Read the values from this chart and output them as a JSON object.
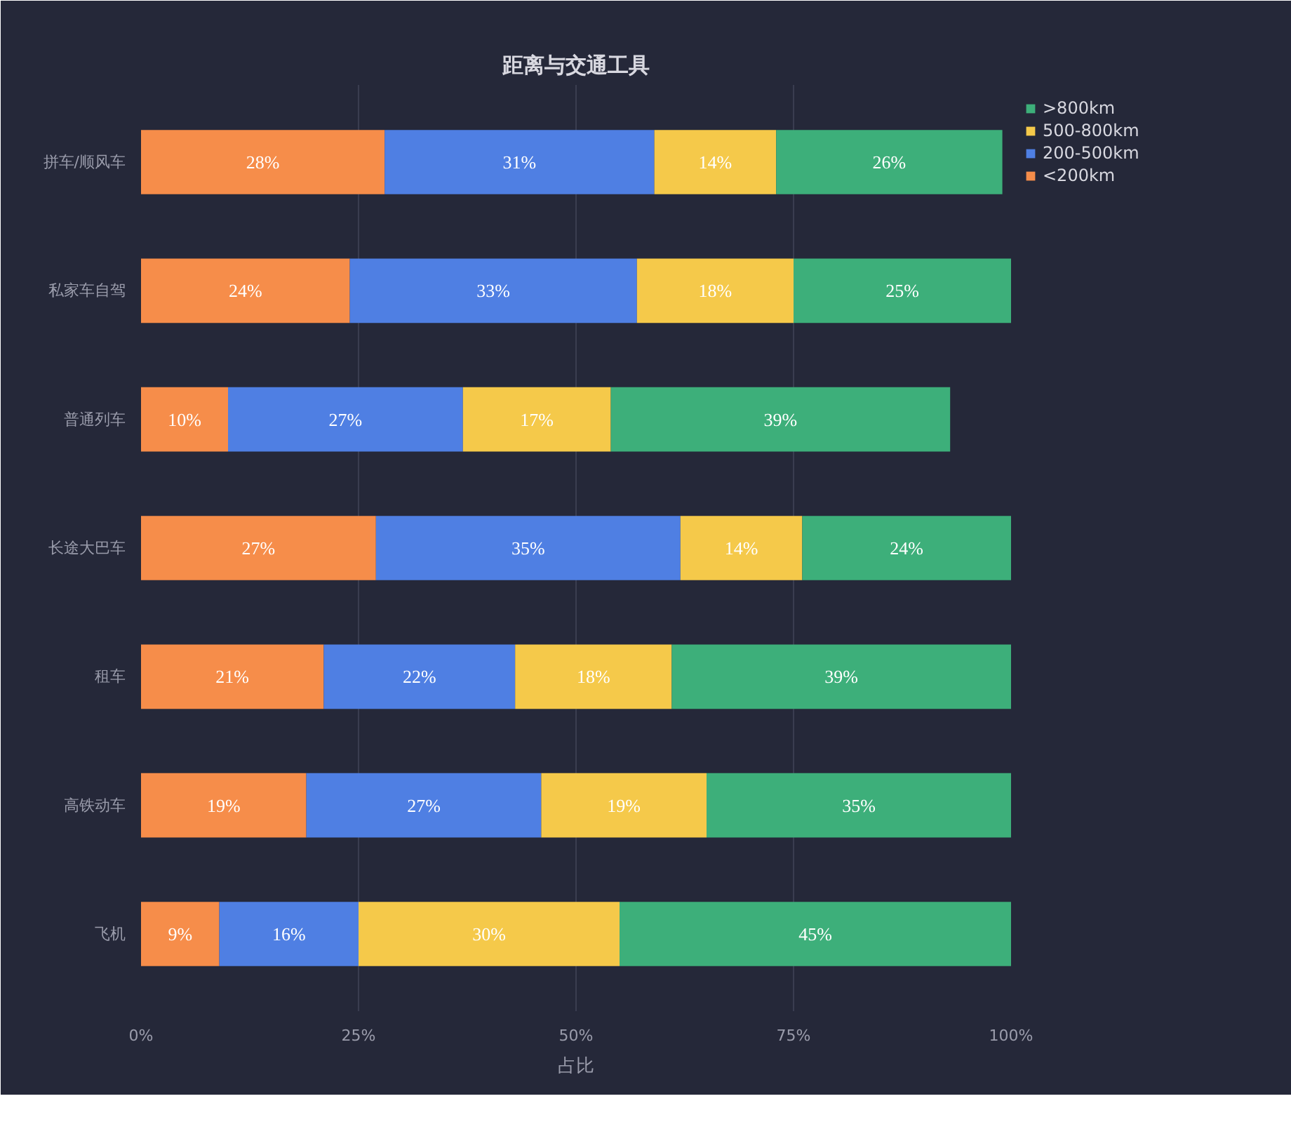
{
  "chart_data": {
    "type": "bar",
    "orientation": "horizontal",
    "stacked": true,
    "title": "距离与交通工具",
    "xlabel": "占比",
    "categories": [
      "拼车/顺风车",
      "私家车自驾",
      "普通列车",
      "长途大巴车",
      "租车",
      "高铁动车",
      "飞机"
    ],
    "series": [
      {
        "name": "<200km",
        "color": "#f68d4a",
        "values": [
          28,
          24,
          10,
          27,
          21,
          19,
          9
        ],
        "value_labels": [
          "28%",
          "24%",
          "10%",
          "27%",
          "21%",
          "19%",
          "9%"
        ]
      },
      {
        "name": "200-500km",
        "color": "#4f7fe3",
        "values": [
          31,
          33,
          27,
          35,
          22,
          27,
          16
        ],
        "value_labels": [
          "31%",
          "33%",
          "27%",
          "35%",
          "22%",
          "27%",
          "16%"
        ]
      },
      {
        "name": "500-800km",
        "color": "#f5c94a",
        "values": [
          14,
          18,
          17,
          14,
          18,
          19,
          30
        ],
        "value_labels": [
          "14%",
          "18%",
          "17%",
          "14%",
          "18%",
          "19%",
          "30%"
        ]
      },
      {
        "name": ">800km",
        "color": "#3daf7a",
        "values": [
          26,
          25,
          39,
          24,
          39,
          35,
          45
        ],
        "value_labels": [
          "26%",
          "25%",
          "39%",
          "24%",
          "39%",
          "35%",
          "45%"
        ]
      }
    ],
    "xlim": [
      0,
      100
    ],
    "xticks": [
      {
        "value": 0,
        "label": "0%"
      },
      {
        "value": 25,
        "label": "25%"
      },
      {
        "value": 50,
        "label": "50%"
      },
      {
        "value": 75,
        "label": "75%"
      },
      {
        "value": 100,
        "label": "100%"
      }
    ],
    "grid": "x",
    "legend": "top right"
  }
}
